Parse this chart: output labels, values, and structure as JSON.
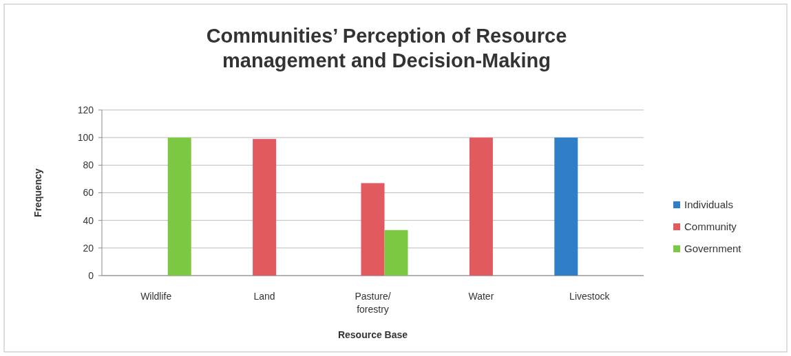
{
  "chart_data": {
    "type": "bar",
    "title": "Communities’ Perception of Resource management and Decision-Making",
    "categories": [
      "Wildlife",
      "Land",
      "Pasture/ forestry",
      "Water",
      "Livestock"
    ],
    "series": [
      {
        "name": "Individuals",
        "color": "#2f7fc8",
        "values": [
          null,
          null,
          null,
          null,
          100
        ]
      },
      {
        "name": "Community",
        "color": "#e05a60",
        "values": [
          null,
          99,
          67,
          100,
          null
        ]
      },
      {
        "name": "Government",
        "color": "#7cc843",
        "values": [
          100,
          null,
          33,
          null,
          null
        ]
      }
    ],
    "xlabel": "Resource Base",
    "ylabel": "Frequency",
    "ylim": [
      0,
      120
    ],
    "yticks": [
      0,
      20,
      40,
      60,
      80,
      100,
      120
    ],
    "grid": "y",
    "legend": "right"
  }
}
